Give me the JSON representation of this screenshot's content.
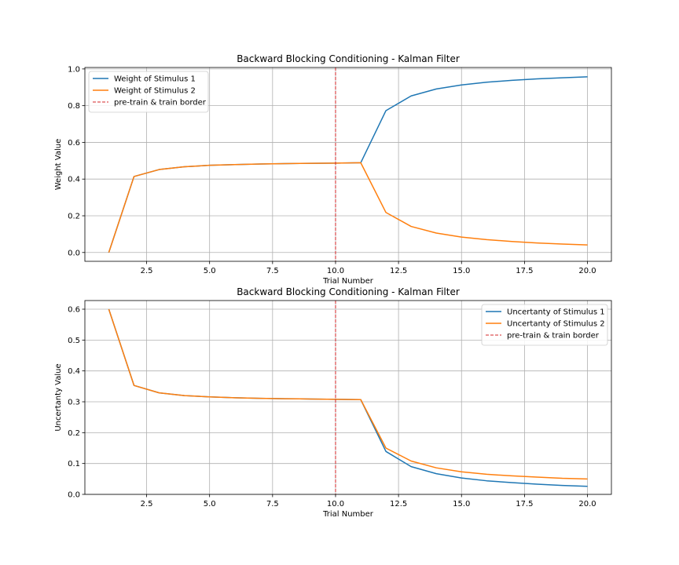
{
  "chart_data": [
    {
      "type": "line",
      "title": "Backward Blocking Conditioning - Kalman Filter",
      "xlabel": "Trial Number",
      "ylabel": "Weight Value",
      "xlim": [
        0.05,
        20.95
      ],
      "ylim": [
        -0.048,
        1.008
      ],
      "xticks": [
        2.5,
        5.0,
        7.5,
        10.0,
        12.5,
        15.0,
        17.5,
        20.0
      ],
      "xtick_labels": [
        "2.5",
        "5.0",
        "7.5",
        "10.0",
        "12.5",
        "15.0",
        "17.5",
        "20.0"
      ],
      "yticks": [
        0.0,
        0.2,
        0.4,
        0.6,
        0.8,
        1.0
      ],
      "ytick_labels": [
        "0.0",
        "0.2",
        "0.4",
        "0.6",
        "0.8",
        "1.0"
      ],
      "grid": true,
      "legend_position": "upper-left",
      "x": [
        1,
        2,
        3,
        4,
        5,
        6,
        7,
        8,
        9,
        10,
        11,
        12,
        13,
        14,
        15,
        16,
        17,
        18,
        19,
        20
      ],
      "series": [
        {
          "name": "Weight of Stimulus 1",
          "color": "#1f77b4",
          "values": [
            0.0,
            0.414,
            0.452,
            0.467,
            0.475,
            0.479,
            0.482,
            0.484,
            0.486,
            0.487,
            0.489,
            0.773,
            0.853,
            0.891,
            0.913,
            0.928,
            0.938,
            0.946,
            0.952,
            0.957
          ]
        },
        {
          "name": "Weight of Stimulus 2",
          "color": "#ff7f0e",
          "values": [
            0.0,
            0.414,
            0.452,
            0.467,
            0.475,
            0.479,
            0.482,
            0.484,
            0.486,
            0.487,
            0.489,
            0.218,
            0.142,
            0.106,
            0.084,
            0.07,
            0.06,
            0.052,
            0.046,
            0.041
          ]
        }
      ],
      "vline": {
        "x": 10,
        "name": "pre-train & train border",
        "color": "#d62728"
      }
    },
    {
      "type": "line",
      "title": "Backward Blocking Conditioning - Kalman Filter",
      "xlabel": "Trial Number",
      "ylabel": "Uncertanty Value",
      "xlim": [
        0.05,
        20.95
      ],
      "ylim": [
        0.0,
        0.628
      ],
      "xticks": [
        2.5,
        5.0,
        7.5,
        10.0,
        12.5,
        15.0,
        17.5,
        20.0
      ],
      "xtick_labels": [
        "2.5",
        "5.0",
        "7.5",
        "10.0",
        "12.5",
        "15.0",
        "17.5",
        "20.0"
      ],
      "yticks": [
        0.0,
        0.1,
        0.2,
        0.3,
        0.4,
        0.5,
        0.6
      ],
      "ytick_labels": [
        "0.0",
        "0.1",
        "0.2",
        "0.3",
        "0.4",
        "0.5",
        "0.6"
      ],
      "grid": true,
      "legend_position": "upper-right",
      "x": [
        1,
        2,
        3,
        4,
        5,
        6,
        7,
        8,
        9,
        10,
        11,
        12,
        13,
        14,
        15,
        16,
        17,
        18,
        19,
        20
      ],
      "series": [
        {
          "name": "Uncertanty of Stimulus 1",
          "color": "#1f77b4",
          "values": [
            0.6,
            0.353,
            0.329,
            0.32,
            0.316,
            0.313,
            0.311,
            0.31,
            0.309,
            0.308,
            0.307,
            0.139,
            0.09,
            0.067,
            0.053,
            0.044,
            0.038,
            0.033,
            0.029,
            0.026
          ]
        },
        {
          "name": "Uncertanty of Stimulus 2",
          "color": "#ff7f0e",
          "values": [
            0.6,
            0.353,
            0.329,
            0.32,
            0.316,
            0.313,
            0.311,
            0.31,
            0.309,
            0.308,
            0.307,
            0.15,
            0.108,
            0.086,
            0.073,
            0.065,
            0.06,
            0.056,
            0.052,
            0.05
          ]
        }
      ],
      "vline": {
        "x": 10,
        "name": "pre-train & train border",
        "color": "#d62728"
      }
    }
  ]
}
